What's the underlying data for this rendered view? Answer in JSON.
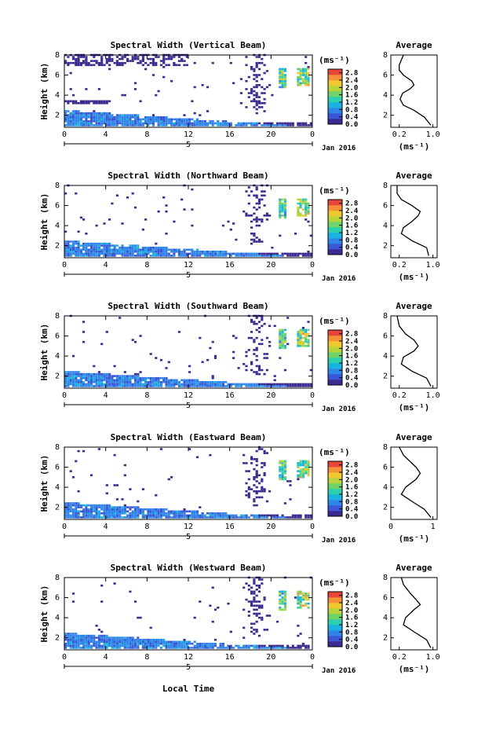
{
  "footer": {
    "xlabel": "Local Time"
  },
  "colormap": [
    "#3b2a8f",
    "#3b57d6",
    "#2f86e8",
    "#1ab3df",
    "#2ccfb0",
    "#6fd36a",
    "#b9d43b",
    "#f0c830",
    "#f6903a",
    "#e8453a"
  ],
  "chart_data": [
    {
      "type": "heatmap",
      "title": "Spectral Width (Vertical Beam)",
      "ylabel": "Height (km)",
      "x_ticks": [
        "0",
        "4",
        "8",
        "12",
        "16",
        "20",
        "0"
      ],
      "x_range": [
        0,
        24
      ],
      "y_ticks": [
        "2",
        "4",
        "6",
        "8"
      ],
      "y_range": [
        0.8,
        8
      ],
      "date_day": "5",
      "date_label": "Jan 2016",
      "colorbar_unit": "(ms⁻¹)",
      "colorbar_ticks": [
        "0.0",
        "0.4",
        "0.8",
        "1.2",
        "1.6",
        "2.0",
        "2.4",
        "2.8"
      ],
      "colorbar_range": [
        0,
        3.0
      ],
      "profile": {
        "type": "line",
        "title": "Average",
        "xlabel": "(ms⁻¹)",
        "x_ticks": [
          "0.2",
          "1.0"
        ],
        "xlim": [
          0,
          1.1
        ],
        "y_ticks": [
          "2",
          "4",
          "6",
          "8"
        ],
        "ylim": [
          0.8,
          8
        ],
        "x": [
          0.95,
          0.8,
          0.55,
          0.3,
          0.22,
          0.28,
          0.45,
          0.55,
          0.5,
          0.3,
          0.2,
          0.2,
          0.25,
          0.3
        ],
        "y": [
          1.0,
          1.8,
          2.5,
          3.0,
          3.6,
          4.2,
          4.6,
          5.0,
          5.4,
          6.0,
          6.5,
          7.0,
          7.5,
          8.0
        ]
      }
    },
    {
      "type": "heatmap",
      "title": "Spectral Width (Northward Beam)",
      "ylabel": "Height (km)",
      "x_ticks": [
        "0",
        "4",
        "8",
        "12",
        "16",
        "20",
        "0"
      ],
      "x_range": [
        0,
        24
      ],
      "y_ticks": [
        "2",
        "4",
        "6",
        "8"
      ],
      "y_range": [
        0.8,
        8
      ],
      "date_day": "5",
      "date_label": "Jan 2016",
      "colorbar_unit": "(ms⁻¹)",
      "colorbar_ticks": [
        "0.0",
        "0.4",
        "0.8",
        "1.2",
        "1.6",
        "2.0",
        "2.4",
        "2.8"
      ],
      "colorbar_range": [
        0,
        3.0
      ],
      "profile": {
        "type": "line",
        "title": "Average",
        "xlabel": "(ms⁻¹)",
        "x_ticks": [
          "0.2",
          "1.0"
        ],
        "xlim": [
          0,
          1.1
        ],
        "y_ticks": [
          "2",
          "4",
          "6",
          "8"
        ],
        "ylim": [
          0.8,
          8
        ],
        "x": [
          0.9,
          0.85,
          0.5,
          0.25,
          0.3,
          0.5,
          0.65,
          0.7,
          0.5,
          0.25,
          0.15,
          0.15
        ],
        "y": [
          1.0,
          1.8,
          2.5,
          3.2,
          3.8,
          4.4,
          5.0,
          5.4,
          6.0,
          6.6,
          7.2,
          8.0
        ]
      }
    },
    {
      "type": "heatmap",
      "title": "Spectral Width (Southward Beam)",
      "ylabel": "Height (km)",
      "x_ticks": [
        "0",
        "4",
        "8",
        "12",
        "16",
        "20",
        "0"
      ],
      "x_range": [
        0,
        24
      ],
      "y_ticks": [
        "2",
        "4",
        "6",
        "8"
      ],
      "y_range": [
        0.8,
        8
      ],
      "date_day": "5",
      "date_label": "Jan 2016",
      "colorbar_unit": "(ms⁻¹)",
      "colorbar_ticks": [
        "0.0",
        "0.4",
        "0.8",
        "1.2",
        "1.6",
        "2.0",
        "2.4",
        "2.8"
      ],
      "colorbar_range": [
        0,
        3.0
      ],
      "profile": {
        "type": "line",
        "title": "Average",
        "xlabel": "(ms⁻¹)",
        "x_ticks": [
          "0.2",
          "1.0"
        ],
        "xlim": [
          0,
          1.1
        ],
        "y_ticks": [
          "2",
          "4",
          "6",
          "8"
        ],
        "ylim": [
          0.8,
          8
        ],
        "x": [
          0.95,
          0.85,
          0.5,
          0.25,
          0.3,
          0.55,
          0.65,
          0.55,
          0.35,
          0.2,
          0.15
        ],
        "y": [
          1.0,
          1.8,
          2.5,
          3.2,
          3.9,
          4.5,
          5.0,
          5.6,
          6.2,
          7.0,
          8.0
        ]
      }
    },
    {
      "type": "heatmap",
      "title": "Spectral Width (Eastward Beam)",
      "ylabel": "Height (km)",
      "x_ticks": [
        "0",
        "4",
        "8",
        "12",
        "16",
        "20",
        "0"
      ],
      "x_range": [
        0,
        24
      ],
      "y_ticks": [
        "2",
        "4",
        "6",
        "8"
      ],
      "y_range": [
        0.8,
        8
      ],
      "date_day": "5",
      "date_label": "Jan 2016",
      "colorbar_unit": "(ms⁻¹)",
      "colorbar_ticks": [
        "0.0",
        "0.4",
        "0.8",
        "1.2",
        "1.6",
        "2.0",
        "2.4",
        "2.8"
      ],
      "colorbar_range": [
        0,
        3.0
      ],
      "profile": {
        "type": "line",
        "title": "Average",
        "xlabel": "(ms⁻¹)",
        "x_ticks": [
          "0",
          "1"
        ],
        "xlim": [
          0,
          1.1
        ],
        "y_ticks": [
          "2",
          "4",
          "6",
          "8"
        ],
        "ylim": [
          0.8,
          8
        ],
        "x": [
          0.95,
          0.8,
          0.5,
          0.25,
          0.35,
          0.6,
          0.7,
          0.6,
          0.45,
          0.3,
          0.2
        ],
        "y": [
          1.0,
          1.8,
          2.6,
          3.3,
          4.0,
          4.8,
          5.4,
          6.0,
          6.6,
          7.2,
          8.0
        ]
      }
    },
    {
      "type": "heatmap",
      "title": "Spectral Width (Westward Beam)",
      "ylabel": "Height (km)",
      "x_ticks": [
        "0",
        "4",
        "8",
        "12",
        "16",
        "20",
        "0"
      ],
      "x_range": [
        0,
        24
      ],
      "y_ticks": [
        "2",
        "4",
        "6",
        "8"
      ],
      "y_range": [
        0.8,
        8
      ],
      "date_day": "5",
      "date_label": "Jan 2016",
      "colorbar_unit": "(ms⁻¹)",
      "colorbar_ticks": [
        "0.0",
        "0.4",
        "0.8",
        "1.2",
        "1.6",
        "2.0",
        "2.4",
        "2.8"
      ],
      "colorbar_range": [
        0,
        3.0
      ],
      "profile": {
        "type": "line",
        "title": "Average",
        "xlabel": "(ms⁻¹)",
        "x_ticks": [
          "0.2",
          "1.0"
        ],
        "xlim": [
          0,
          1.1
        ],
        "y_ticks": [
          "2",
          "4",
          "6",
          "8"
        ],
        "ylim": [
          0.8,
          8
        ],
        "x": [
          0.95,
          0.85,
          0.55,
          0.3,
          0.35,
          0.55,
          0.7,
          0.6,
          0.45,
          0.3,
          0.25
        ],
        "y": [
          1.0,
          1.8,
          2.6,
          3.3,
          4.0,
          4.8,
          5.3,
          5.8,
          6.5,
          7.3,
          8.0
        ]
      }
    }
  ]
}
